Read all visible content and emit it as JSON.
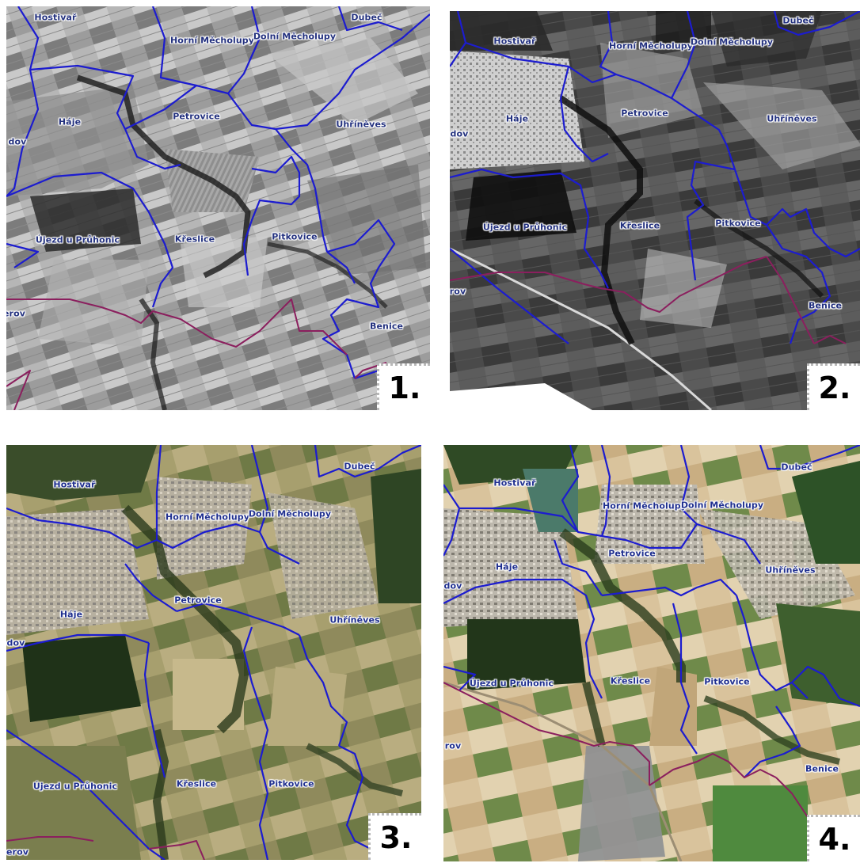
{
  "panels": [
    {
      "number": "1.",
      "imagery": "black-and-white aerial",
      "labels": {
        "hostivar": "Hostivař",
        "horni_mecholupy": "Horní Měcholupy",
        "dolni_mecholupy": "Dolní Měcholupy",
        "dubec": "Dubeč",
        "haje": "Háje",
        "petrovice": "Petrovice",
        "uhrineves": "Uhříněves",
        "chodov": "dov",
        "ujezd": "Újezd u Průhonic",
        "kreslice": "Křeslice",
        "pitkovice": "Pitkovice",
        "benice": "Benice",
        "sterov": "erov"
      }
    },
    {
      "number": "2.",
      "imagery": "black-and-white aerial",
      "labels": {
        "hostivar": "Hostivař",
        "horni_mecholupy": "Horní Měcholupy",
        "dolni_mecholupy": "Dolní Měcholupy",
        "dubec": "Dubeč",
        "haje": "Háje",
        "petrovice": "Petrovice",
        "uhrineves": "Uhříněves",
        "chodov": "dov",
        "ujezd": "Újezd u Průhonic",
        "kreslice": "Křeslice",
        "pitkovice": "Pitkovice",
        "benice": "Benice",
        "sterov": "rov"
      }
    },
    {
      "number": "3.",
      "imagery": "colour aerial",
      "labels": {
        "hostivar": "Hostivař",
        "horni_mecholupy": "Horní Měcholupy",
        "dolni_mecholupy": "Dolní Měcholupy",
        "dubec": "Dubeč",
        "haje": "Háje",
        "petrovice": "Petrovice",
        "uhrineves": "Uhříněves",
        "chodov": "dov",
        "ujezd": "Újezd u Průhonic",
        "kreslice": "Křeslice",
        "pitkovice": "Pitkovice",
        "sterov": "erov"
      }
    },
    {
      "number": "4.",
      "imagery": "colour aerial",
      "labels": {
        "hostivar": "Hostivař",
        "horni_mecholupy": "Horní Měcholupy",
        "dolni_mecholupy": "Dolní Měcholupy",
        "dubec": "Dubeč",
        "haje": "Háje",
        "petrovice": "Petrovice",
        "uhrineves": "Uhříněves",
        "chodov": "dov",
        "ujezd": "Újezd u Průhonic",
        "kreslice": "Křeslice",
        "pitkovice": "Pitkovice",
        "benice": "Benice",
        "sterov": "rov"
      }
    }
  ],
  "colors": {
    "district_boundary": "#1c1ccf",
    "city_boundary": "#8b1f5e",
    "label_text": "#1f2f8f"
  }
}
